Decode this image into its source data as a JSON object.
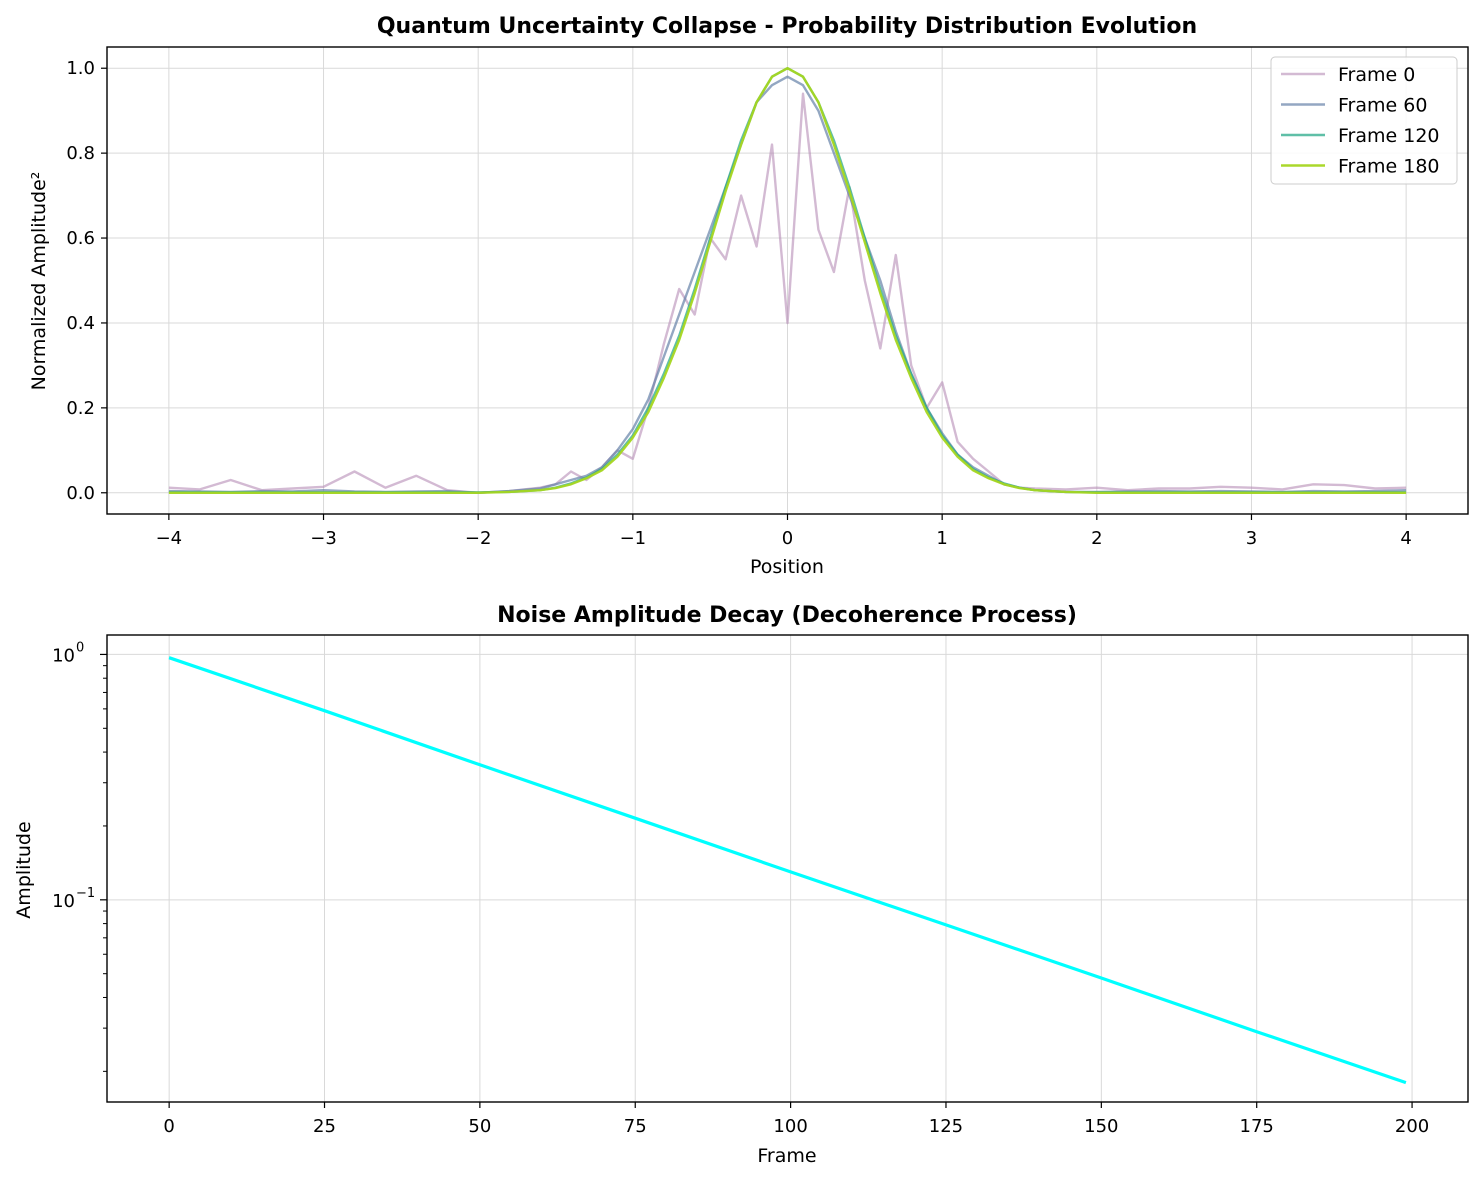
{
  "chart_data": [
    {
      "type": "line",
      "title": "Quantum Uncertainty Collapse - Probability Distribution Evolution",
      "xlabel": "Position",
      "ylabel": "Normalized Amplitude²",
      "xlim": [
        -4.4,
        4.4
      ],
      "ylim": [
        -0.05,
        1.05
      ],
      "xticks": [
        "−4",
        "−3",
        "−2",
        "−1",
        "0",
        "1",
        "2",
        "3",
        "4"
      ],
      "xtick_values": [
        -4,
        -3,
        -2,
        -1,
        0,
        1,
        2,
        3,
        4
      ],
      "yticks": [
        "0.0",
        "0.2",
        "0.4",
        "0.6",
        "0.8",
        "1.0"
      ],
      "ytick_values": [
        0,
        0.2,
        0.4,
        0.6,
        0.8,
        1.0
      ],
      "grid": true,
      "legend": "top-right",
      "x": [
        -4.0,
        -3.8,
        -3.6,
        -3.4,
        -3.2,
        -3.0,
        -2.8,
        -2.6,
        -2.4,
        -2.2,
        -2.0,
        -1.8,
        -1.6,
        -1.5,
        -1.4,
        -1.3,
        -1.2,
        -1.1,
        -1.0,
        -0.9,
        -0.8,
        -0.7,
        -0.6,
        -0.5,
        -0.4,
        -0.3,
        -0.2,
        -0.1,
        0.0,
        0.1,
        0.2,
        0.3,
        0.4,
        0.5,
        0.6,
        0.7,
        0.8,
        0.9,
        1.0,
        1.1,
        1.2,
        1.3,
        1.4,
        1.5,
        1.6,
        1.8,
        2.0,
        2.2,
        2.4,
        2.6,
        2.8,
        3.0,
        3.2,
        3.4,
        3.6,
        3.8,
        4.0
      ],
      "series": [
        {
          "name": "Frame 0",
          "color": "#b58cb6",
          "values": [
            0.012,
            0.008,
            0.03,
            0.006,
            0.01,
            0.014,
            0.05,
            0.012,
            0.04,
            0.006,
            0.0,
            0.004,
            0.012,
            0.02,
            0.05,
            0.03,
            0.06,
            0.1,
            0.08,
            0.2,
            0.35,
            0.48,
            0.42,
            0.6,
            0.55,
            0.7,
            0.58,
            0.82,
            0.4,
            0.94,
            0.62,
            0.52,
            0.72,
            0.5,
            0.34,
            0.56,
            0.3,
            0.2,
            0.26,
            0.12,
            0.08,
            0.05,
            0.02,
            0.012,
            0.01,
            0.008,
            0.012,
            0.006,
            0.01,
            0.01,
            0.014,
            0.012,
            0.008,
            0.02,
            0.018,
            0.01,
            0.012
          ]
        },
        {
          "name": "Frame 60",
          "color": "#6582a8",
          "values": [
            0.004,
            0.003,
            0.002,
            0.004,
            0.003,
            0.006,
            0.003,
            0.002,
            0.003,
            0.004,
            0.0,
            0.004,
            0.01,
            0.02,
            0.03,
            0.04,
            0.06,
            0.1,
            0.15,
            0.22,
            0.32,
            0.42,
            0.52,
            0.62,
            0.72,
            0.82,
            0.92,
            0.96,
            0.98,
            0.96,
            0.9,
            0.8,
            0.7,
            0.6,
            0.5,
            0.38,
            0.28,
            0.2,
            0.14,
            0.09,
            0.06,
            0.04,
            0.02,
            0.012,
            0.006,
            0.002,
            0.002,
            0.003,
            0.004,
            0.003,
            0.004,
            0.003,
            0.002,
            0.004,
            0.003,
            0.004,
            0.006
          ]
        },
        {
          "name": "Frame 120",
          "color": "#2aaa8a",
          "values": [
            0.001,
            0.001,
            0.001,
            0.001,
            0.001,
            0.001,
            0.001,
            0.001,
            0.001,
            0.001,
            0.001,
            0.002,
            0.006,
            0.012,
            0.022,
            0.036,
            0.056,
            0.09,
            0.135,
            0.2,
            0.28,
            0.37,
            0.48,
            0.6,
            0.72,
            0.83,
            0.92,
            0.98,
            1.0,
            0.98,
            0.92,
            0.83,
            0.72,
            0.6,
            0.48,
            0.37,
            0.28,
            0.2,
            0.135,
            0.09,
            0.056,
            0.036,
            0.022,
            0.012,
            0.006,
            0.002,
            0.001,
            0.001,
            0.001,
            0.001,
            0.001,
            0.001,
            0.001,
            0.001,
            0.001,
            0.001,
            0.001
          ]
        },
        {
          "name": "Frame 180",
          "color": "#a5d620",
          "values": [
            0.0,
            0.0,
            0.0,
            0.0,
            0.0,
            0.0,
            0.0,
            0.0,
            0.0,
            0.0,
            0.0,
            0.002,
            0.006,
            0.011,
            0.02,
            0.034,
            0.053,
            0.085,
            0.13,
            0.19,
            0.27,
            0.36,
            0.47,
            0.59,
            0.71,
            0.82,
            0.92,
            0.98,
            1.0,
            0.98,
            0.92,
            0.82,
            0.71,
            0.59,
            0.47,
            0.36,
            0.27,
            0.19,
            0.13,
            0.085,
            0.053,
            0.034,
            0.02,
            0.011,
            0.006,
            0.002,
            0.0,
            0.0,
            0.0,
            0.0,
            0.0,
            0.0,
            0.0,
            0.0,
            0.0,
            0.0,
            0.0
          ]
        }
      ]
    },
    {
      "type": "line",
      "title": "Noise Amplitude Decay (Decoherence Process)",
      "xlabel": "Frame",
      "ylabel": "Amplitude",
      "scale_y": "log",
      "xlim": [
        -10,
        209
      ],
      "ylim": [
        0.015,
        1.2
      ],
      "xticks": [
        "0",
        "25",
        "50",
        "75",
        "100",
        "125",
        "150",
        "175",
        "200"
      ],
      "xtick_values": [
        0,
        25,
        50,
        75,
        100,
        125,
        150,
        175,
        200
      ],
      "yticks_major": [
        "10",
        "10"
      ],
      "yticks_major_exp": [
        "0",
        "−1"
      ],
      "ytick_values": [
        1.0,
        0.1
      ],
      "grid": true,
      "series": [
        {
          "color": "#00ffff",
          "x": [
            0,
            25,
            50,
            75,
            100,
            125,
            150,
            175,
            199
          ],
          "values": [
            0.97,
            0.59,
            0.355,
            0.215,
            0.13,
            0.079,
            0.048,
            0.029,
            0.018
          ]
        }
      ]
    }
  ]
}
